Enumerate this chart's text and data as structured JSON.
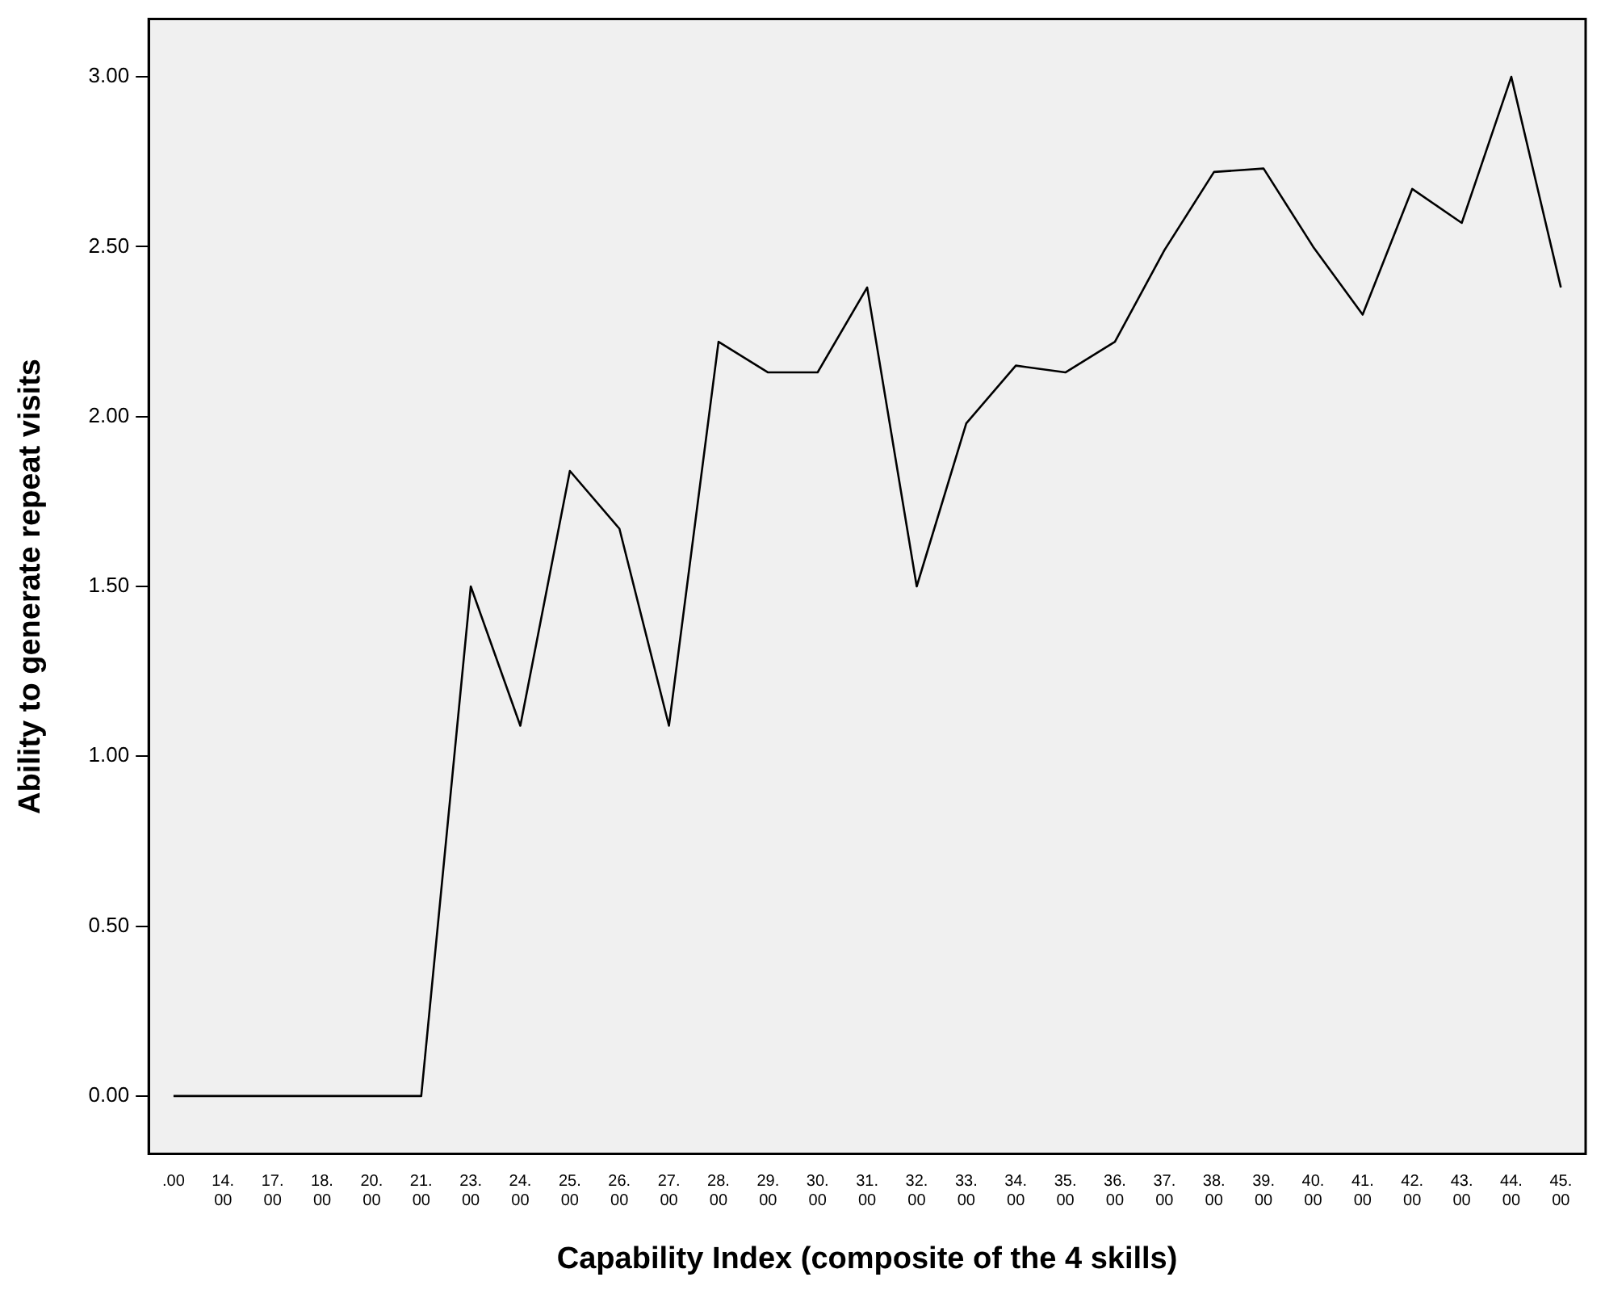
{
  "chart_data": {
    "type": "line",
    "xlabel": "Capability Index (composite of the 4 skills)",
    "ylabel": "Ability to generate repeat visits",
    "categories": [
      ".00",
      "14.00",
      "17.00",
      "18.00",
      "20.00",
      "21.00",
      "23.00",
      "24.00",
      "25.00",
      "26.00",
      "27.00",
      "28.00",
      "29.00",
      "30.00",
      "31.00",
      "32.00",
      "33.00",
      "34.00",
      "35.00",
      "36.00",
      "37.00",
      "38.00",
      "39.00",
      "40.00",
      "41.00",
      "42.00",
      "43.00",
      "44.00",
      "45.00"
    ],
    "series": [
      {
        "color": "#000000",
        "values": [
          0,
          0,
          0,
          0,
          0,
          0,
          1.5,
          1.09,
          1.84,
          1.67,
          1.09,
          2.22,
          2.13,
          2.13,
          2.38,
          1.5,
          1.98,
          2.15,
          2.13,
          2.22,
          2.49,
          2.72,
          2.73,
          2.5,
          2.3,
          2.67,
          2.57,
          3.0,
          2.38
        ]
      }
    ],
    "ylim": [
      -0.17,
      3.17
    ],
    "yticks": [
      {
        "value": 0,
        "label": "0.00"
      },
      {
        "value": 0.5,
        "label": "0.50"
      },
      {
        "value": 1,
        "label": "1.00"
      },
      {
        "value": 1.5,
        "label": "1.50"
      },
      {
        "value": 2,
        "label": "2.00"
      },
      {
        "value": 2.5,
        "label": "2.50"
      },
      {
        "value": 3,
        "label": "3.00"
      }
    ],
    "grid": false,
    "legend": false,
    "marker": "none",
    "line_style": "solid"
  }
}
